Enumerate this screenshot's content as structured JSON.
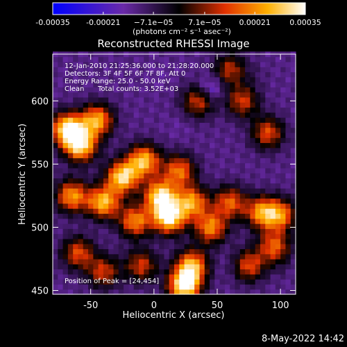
{
  "chart_data": {
    "type": "heatmap",
    "title": "Reconstructed RHESSI Image",
    "xlabel": "Heliocentric X (arcsec)",
    "ylabel": "Heliocentric Y (arcsec)",
    "xlim": [
      -80,
      112
    ],
    "ylim": [
      447,
      637
    ],
    "xticks": [
      -50,
      0,
      50,
      100
    ],
    "yticks": [
      450,
      500,
      550,
      600
    ],
    "colorbar": {
      "ticks": [
        "-0.00035",
        "-0.00021",
        "−7.1e−05",
        "7.1e−05",
        "0.00021",
        "0.00035"
      ],
      "tick_values": [
        -0.00035,
        -0.00021,
        -7.1e-05,
        7.1e-05,
        0.00021,
        0.00035
      ],
      "range": [
        -0.00035,
        0.00035
      ],
      "unit_label": "(photons cm⁻² s⁻¹ asec⁻²)"
    },
    "annotations": {
      "time": "12-Jan-2010 21:25:36.000 to 21:28:20.000",
      "detectors": "Detectors: 3F 4F 5F 6F 7F 8F, Att 0",
      "energy": "Energy Range: 25.0 - 50.0 keV",
      "method": "Clean",
      "counts": "Total counts: 3.52E+03",
      "peak": "Position of Peak = [24,454]"
    },
    "peak": {
      "x": 24,
      "y": 454
    },
    "hotspots": [
      {
        "x": -68,
        "y": 578,
        "v": 0.00034
      },
      {
        "x": -58,
        "y": 565,
        "v": 0.0003
      },
      {
        "x": -45,
        "y": 585,
        "v": 0.00024
      },
      {
        "x": -65,
        "y": 525,
        "v": 0.00022
      },
      {
        "x": -40,
        "y": 520,
        "v": 0.00026
      },
      {
        "x": -25,
        "y": 540,
        "v": 0.0003
      },
      {
        "x": -8,
        "y": 553,
        "v": 0.00026
      },
      {
        "x": 5,
        "y": 525,
        "v": 0.0003
      },
      {
        "x": 12,
        "y": 508,
        "v": 0.00033
      },
      {
        "x": -15,
        "y": 505,
        "v": 0.0002
      },
      {
        "x": 30,
        "y": 520,
        "v": 0.00022
      },
      {
        "x": 20,
        "y": 545,
        "v": 0.00018
      },
      {
        "x": 45,
        "y": 500,
        "v": 0.0002
      },
      {
        "x": 60,
        "y": 520,
        "v": 0.00016
      },
      {
        "x": 85,
        "y": 512,
        "v": 0.0002
      },
      {
        "x": 100,
        "y": 510,
        "v": 0.00018
      },
      {
        "x": 95,
        "y": 485,
        "v": 0.00016
      },
      {
        "x": 75,
        "y": 470,
        "v": 0.00014
      },
      {
        "x": 24,
        "y": 454,
        "v": 0.00035
      },
      {
        "x": 30,
        "y": 470,
        "v": 0.00024
      },
      {
        "x": -40,
        "y": 465,
        "v": 0.00012
      },
      {
        "x": 35,
        "y": 600,
        "v": 0.00012
      },
      {
        "x": 70,
        "y": 600,
        "v": 0.00012
      },
      {
        "x": 90,
        "y": 575,
        "v": 0.00014
      },
      {
        "x": 60,
        "y": 625,
        "v": 0.0001
      },
      {
        "x": -10,
        "y": 470,
        "v": 0.00012
      },
      {
        "x": -60,
        "y": 480,
        "v": 0.00014
      }
    ],
    "coldspots": [
      {
        "x": 45,
        "y": 610,
        "v": -0.00024
      },
      {
        "x": 20,
        "y": 580,
        "v": -0.00014
      },
      {
        "x": -20,
        "y": 600,
        "v": -0.00012
      },
      {
        "x": 85,
        "y": 560,
        "v": -0.00012
      },
      {
        "x": 60,
        "y": 470,
        "v": -0.00014
      },
      {
        "x": 100,
        "y": 470,
        "v": -0.0001
      },
      {
        "x": 5,
        "y": 620,
        "v": -0.00014
      },
      {
        "x": 80,
        "y": 620,
        "v": -0.0001
      }
    ]
  },
  "footer": {
    "date": "8-May-2022 14:42"
  }
}
